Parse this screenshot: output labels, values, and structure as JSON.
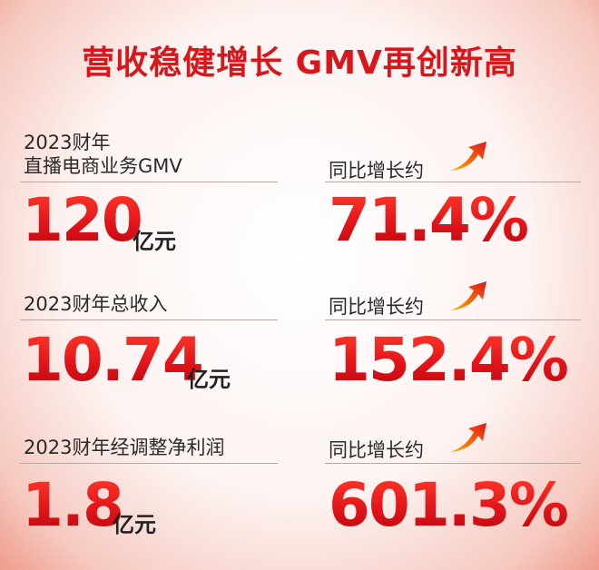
{
  "title": "营收稳健增长 GMV再创新高",
  "rows": [
    {
      "label": [
        "2023财年",
        "直播电商业务GMV"
      ],
      "value": "120",
      "unit": "亿元",
      "growth_label": "同比增长约",
      "growth": "71.4%"
    },
    {
      "label": [
        "2023财年总收入"
      ],
      "value": "10.74",
      "unit": "亿元",
      "growth_label": "同比增长约",
      "growth": "152.4%"
    },
    {
      "label": [
        "2023财年经调整净利润"
      ],
      "value": "1.8",
      "unit": "亿元",
      "growth_label": "同比增长约",
      "growth": "601.3%"
    }
  ]
}
